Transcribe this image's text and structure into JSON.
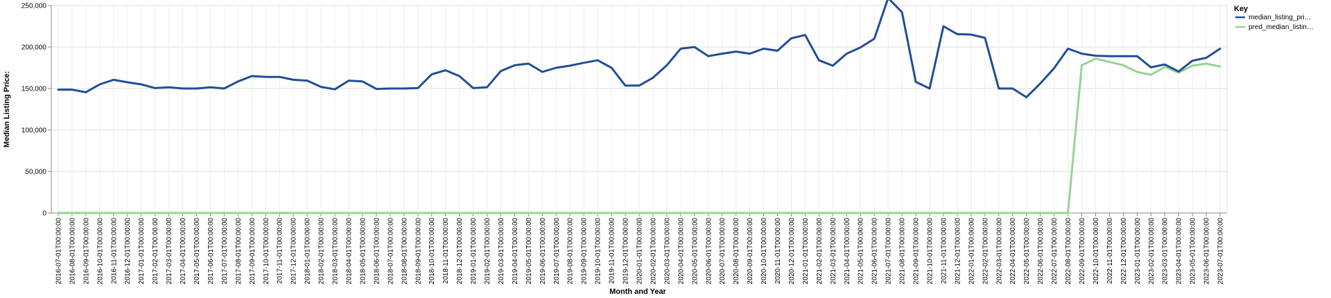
{
  "chart_data": {
    "type": "line",
    "xlabel": "Month and Year",
    "ylabel": "Median Listing Price:",
    "ylim": [
      0,
      250000
    ],
    "y_ticks": [
      0,
      50000,
      100000,
      150000,
      200000,
      250000
    ],
    "y_tick_labels": [
      "0",
      "50,000",
      "100,000",
      "150,000",
      "200,000",
      "250,000"
    ],
    "grid": true,
    "legend": {
      "title": "Key",
      "placement": "top-right"
    },
    "categories": [
      "2016-07-01T00:00:00",
      "2016-08-01T00:00:00",
      "2016-09-01T00:00:00",
      "2016-10-01T00:00:00",
      "2016-11-01T00:00:00",
      "2016-12-01T00:00:00",
      "2017-01-01T00:00:00",
      "2017-02-01T00:00:00",
      "2017-03-01T00:00:00",
      "2017-04-01T00:00:00",
      "2017-05-01T00:00:00",
      "2017-06-01T00:00:00",
      "2017-07-01T00:00:00",
      "2017-08-01T00:00:00",
      "2017-09-01T00:00:00",
      "2017-10-01T00:00:00",
      "2017-11-01T00:00:00",
      "2017-12-01T00:00:00",
      "2018-01-01T00:00:00",
      "2018-02-01T00:00:00",
      "2018-03-01T00:00:00",
      "2018-04-01T00:00:00",
      "2018-05-01T00:00:00",
      "2018-06-01T00:00:00",
      "2018-07-01T00:00:00",
      "2018-08-01T00:00:00",
      "2018-09-01T00:00:00",
      "2018-10-01T00:00:00",
      "2018-11-01T00:00:00",
      "2018-12-01T00:00:00",
      "2019-01-01T00:00:00",
      "2019-02-01T00:00:00",
      "2019-03-01T00:00:00",
      "2019-04-01T00:00:00",
      "2019-05-01T00:00:00",
      "2019-06-01T00:00:00",
      "2019-07-01T00:00:00",
      "2019-08-01T00:00:00",
      "2019-09-01T00:00:00",
      "2019-10-01T00:00:00",
      "2019-11-01T00:00:00",
      "2019-12-01T00:00:00",
      "2020-01-01T00:00:00",
      "2020-02-01T00:00:00",
      "2020-03-01T00:00:00",
      "2020-04-01T00:00:00",
      "2020-05-01T00:00:00",
      "2020-06-01T00:00:00",
      "2020-07-01T00:00:00",
      "2020-08-01T00:00:00",
      "2020-09-01T00:00:00",
      "2020-10-01T00:00:00",
      "2020-11-01T00:00:00",
      "2020-12-01T00:00:00",
      "2021-01-01T00:00:00",
      "2021-02-01T00:00:00",
      "2021-03-01T00:00:00",
      "2021-04-01T00:00:00",
      "2021-05-01T00:00:00",
      "2021-06-01T00:00:00",
      "2021-07-01T00:00:00",
      "2021-08-01T00:00:00",
      "2021-09-01T00:00:00",
      "2021-10-01T00:00:00",
      "2021-11-01T00:00:00",
      "2021-12-01T00:00:00",
      "2022-01-01T00:00:00",
      "2022-02-01T00:00:00",
      "2022-03-01T00:00:00",
      "2022-04-01T00:00:00",
      "2022-05-01T00:00:00",
      "2022-06-01T00:00:00",
      "2022-07-01T00:00:00",
      "2022-08-01T00:00:00",
      "2022-09-01T00:00:00",
      "2022-10-01T00:00:00",
      "2022-11-01T00:00:00",
      "2022-12-01T00:00:00",
      "2023-01-01T00:00:00",
      "2023-02-01T00:00:00",
      "2023-03-01T00:00:00",
      "2023-04-01T00:00:00",
      "2023-05-01T00:00:00",
      "2023-06-01T00:00:00",
      "2023-07-01T00:00:00"
    ],
    "series": [
      {
        "name": "median_listing_pri…",
        "color": "#1f4e96",
        "values": [
          148500,
          148600,
          145500,
          155000,
          160500,
          157500,
          155000,
          150500,
          151500,
          150000,
          150000,
          151500,
          150000,
          158500,
          165000,
          164000,
          164000,
          160500,
          159500,
          152000,
          149000,
          159500,
          158500,
          149500,
          150000,
          150000,
          150500,
          167000,
          172000,
          165000,
          150500,
          151500,
          171000,
          178000,
          180000,
          170000,
          175000,
          177500,
          181000,
          184000,
          175000,
          153500,
          153500,
          163000,
          178000,
          198000,
          200000,
          189000,
          192000,
          194500,
          192000,
          198000,
          195500,
          210500,
          214500,
          184000,
          177500,
          192000,
          199500,
          210000,
          259000,
          242000,
          158000,
          150000,
          225000,
          215500,
          215000,
          211000,
          150000,
          150000,
          139500,
          156000,
          174500,
          198000,
          192000,
          189500,
          189000,
          189000,
          189000,
          175500,
          179000,
          170500,
          183500,
          187000,
          198000
        ]
      },
      {
        "name": "pred_median_listin…",
        "color": "#98d394",
        "values": [
          0,
          0,
          0,
          0,
          0,
          0,
          0,
          0,
          0,
          0,
          0,
          0,
          0,
          0,
          0,
          0,
          0,
          0,
          0,
          0,
          0,
          0,
          0,
          0,
          0,
          0,
          0,
          0,
          0,
          0,
          0,
          0,
          0,
          0,
          0,
          0,
          0,
          0,
          0,
          0,
          0,
          0,
          0,
          0,
          0,
          0,
          0,
          0,
          0,
          0,
          0,
          0,
          0,
          0,
          0,
          0,
          0,
          0,
          0,
          0,
          0,
          0,
          0,
          0,
          0,
          0,
          0,
          0,
          0,
          0,
          0,
          0,
          0,
          0,
          178000,
          186000,
          182000,
          178000,
          170000,
          166500,
          176000,
          169000,
          177500,
          180000,
          176500
        ]
      }
    ]
  }
}
